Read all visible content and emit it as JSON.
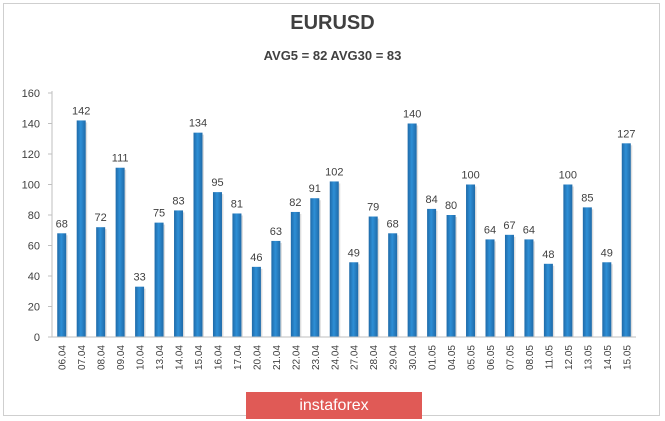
{
  "chart_data": {
    "type": "bar",
    "title": "EURUSD",
    "subtitle": "AVG5 = 82 AVG30 = 83",
    "categories": [
      "06.04",
      "07.04",
      "08.04",
      "09.04",
      "10.04",
      "13.04",
      "14.04",
      "15.04",
      "16.04",
      "17.04",
      "20.04",
      "21.04",
      "22.04",
      "23.04",
      "24.04",
      "27.04",
      "28.04",
      "29.04",
      "30.04",
      "01.05",
      "04.05",
      "05.05",
      "06.05",
      "07.05",
      "08.05",
      "11.05",
      "12.05",
      "13.05",
      "14.05",
      "15.05"
    ],
    "values": [
      68,
      142,
      72,
      111,
      33,
      75,
      83,
      134,
      95,
      81,
      46,
      63,
      82,
      91,
      102,
      49,
      79,
      68,
      140,
      84,
      80,
      100,
      64,
      67,
      64,
      48,
      100,
      85,
      49,
      127
    ],
    "ylim": [
      0,
      160
    ],
    "yticks": [
      0,
      20,
      40,
      60,
      80,
      100,
      120,
      140,
      160
    ],
    "grid": false,
    "colors": {
      "bar": "#2e8fd6",
      "bar_dark": "#1f6aa8",
      "axis": "#bfbfbf",
      "text": "#404040"
    }
  },
  "watermark": "instaforex"
}
